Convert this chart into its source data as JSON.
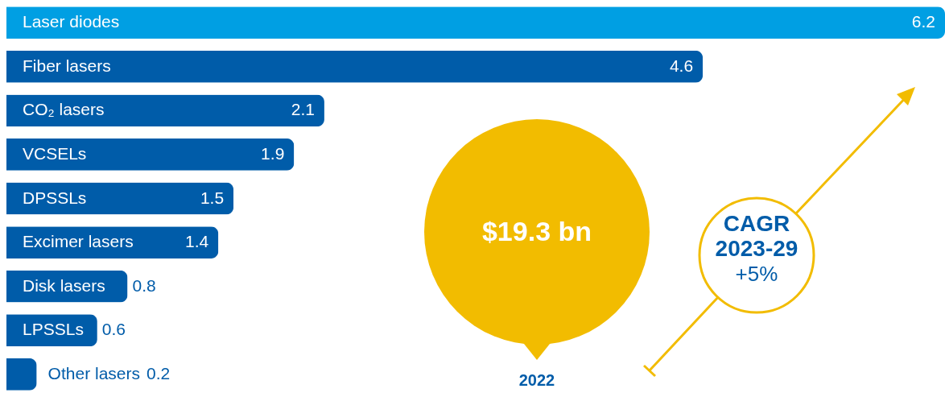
{
  "chart_data": {
    "type": "bar",
    "orientation": "horizontal",
    "categories": [
      "Laser diodes",
      "Fiber lasers",
      "CO₂ lasers",
      "VCSELs",
      "DPSSLs",
      "Excimer lasers",
      "Disk lasers",
      "LPSSLs",
      "Other lasers"
    ],
    "values": [
      6.2,
      4.6,
      2.1,
      1.9,
      1.5,
      1.4,
      0.8,
      0.6,
      0.2
    ],
    "colors": [
      "#009fe3",
      "#005ca9",
      "#005ca9",
      "#005ca9",
      "#005ca9",
      "#005ca9",
      "#005ca9",
      "#005ca9",
      "#005ca9"
    ],
    "value_labels": [
      "6.2",
      "4.6",
      "2.1",
      "1.9",
      "1.5",
      "1.4",
      "0.8",
      "0.6",
      null
    ],
    "annotations": [
      "$19.3 bn",
      "2022",
      "CAGR 2023-29 +5%",
      "0.2"
    ]
  }
}
